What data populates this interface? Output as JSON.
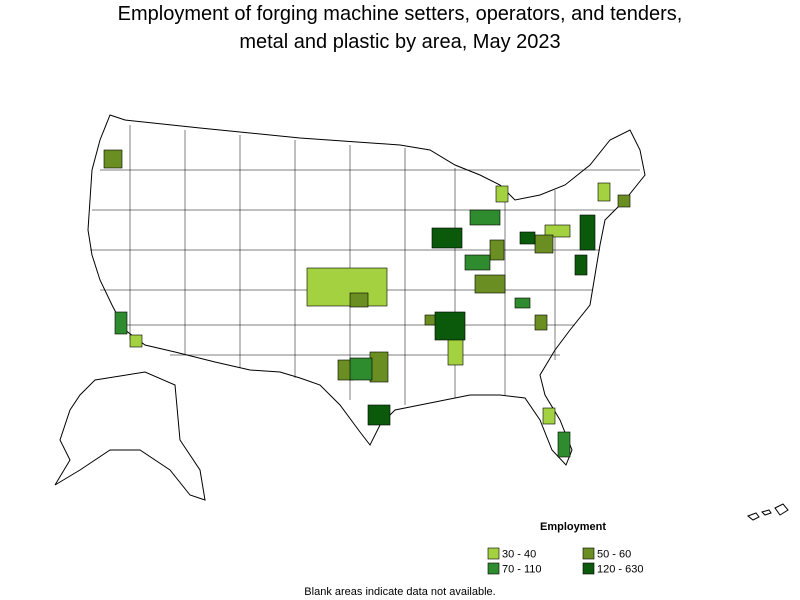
{
  "header": {
    "title_lines": [
      "Employment of forging machine setters, operators, and tenders,",
      "metal and plastic by area, May 2023"
    ]
  },
  "legend": {
    "title": "Employment",
    "items": [
      {
        "label": "30 - 40",
        "color": "#a3d13f"
      },
      {
        "label": "50 - 60",
        "color": "#6b8e23"
      },
      {
        "label": "70 - 110",
        "color": "#2e8b2e"
      },
      {
        "label": "120 - 630",
        "color": "#0b5a0b"
      }
    ]
  },
  "footnote": "Blank areas indicate data not available."
}
